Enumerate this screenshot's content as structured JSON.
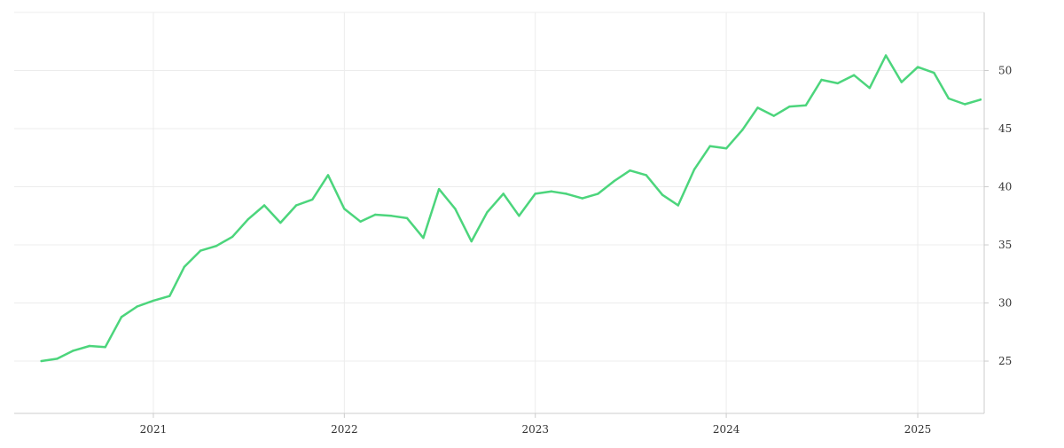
{
  "chart_data": {
    "type": "line",
    "title": "",
    "xlabel": "",
    "ylabel": "",
    "x_ticks": [
      "2021",
      "2022",
      "2023",
      "2024",
      "2025"
    ],
    "y_ticks": [
      25,
      30,
      35,
      40,
      45,
      50
    ],
    "y_axis_position": "right",
    "xlim": [
      "2020-04-10",
      "2025-05-08"
    ],
    "ylim": [
      20.5,
      55
    ],
    "grid": true,
    "series": [
      {
        "color": "#4cd57c",
        "points": [
          [
            "2020-06",
            25.0
          ],
          [
            "2020-07",
            25.2
          ],
          [
            "2020-08",
            25.9
          ],
          [
            "2020-09",
            26.3
          ],
          [
            "2020-10",
            26.2
          ],
          [
            "2020-11",
            28.8
          ],
          [
            "2020-12",
            29.7
          ],
          [
            "2021-01",
            30.2
          ],
          [
            "2021-02",
            30.6
          ],
          [
            "2021-03",
            33.1
          ],
          [
            "2021-04",
            34.5
          ],
          [
            "2021-05",
            34.9
          ],
          [
            "2021-06",
            35.7
          ],
          [
            "2021-07",
            37.2
          ],
          [
            "2021-08",
            38.4
          ],
          [
            "2021-09",
            36.9
          ],
          [
            "2021-10",
            38.4
          ],
          [
            "2021-11",
            38.9
          ],
          [
            "2021-12",
            41.0
          ],
          [
            "2022-01",
            38.1
          ],
          [
            "2022-02",
            37.0
          ],
          [
            "2022-03",
            37.6
          ],
          [
            "2022-04",
            37.5
          ],
          [
            "2022-05",
            37.3
          ],
          [
            "2022-06",
            35.6
          ],
          [
            "2022-07",
            39.8
          ],
          [
            "2022-08",
            38.1
          ],
          [
            "2022-09",
            35.3
          ],
          [
            "2022-10",
            37.8
          ],
          [
            "2022-11",
            39.4
          ],
          [
            "2022-12",
            37.5
          ],
          [
            "2023-01",
            39.4
          ],
          [
            "2023-02",
            39.6
          ],
          [
            "2023-03",
            39.4
          ],
          [
            "2023-04",
            39.0
          ],
          [
            "2023-05",
            39.4
          ],
          [
            "2023-06",
            40.5
          ],
          [
            "2023-07",
            41.4
          ],
          [
            "2023-08",
            41.0
          ],
          [
            "2023-09",
            39.3
          ],
          [
            "2023-10",
            38.4
          ],
          [
            "2023-11",
            41.5
          ],
          [
            "2023-12",
            43.5
          ],
          [
            "2024-01",
            43.3
          ],
          [
            "2024-02",
            44.9
          ],
          [
            "2024-03",
            46.8
          ],
          [
            "2024-04",
            46.1
          ],
          [
            "2024-05",
            46.9
          ],
          [
            "2024-06",
            47.0
          ],
          [
            "2024-07",
            49.2
          ],
          [
            "2024-08",
            48.9
          ],
          [
            "2024-09",
            49.6
          ],
          [
            "2024-10",
            48.5
          ],
          [
            "2024-11",
            51.3
          ],
          [
            "2024-12",
            49.0
          ],
          [
            "2025-01",
            50.3
          ],
          [
            "2025-02",
            49.8
          ],
          [
            "2025-03",
            47.6
          ],
          [
            "2025-04",
            47.1
          ],
          [
            "2025-05",
            47.5
          ]
        ]
      }
    ]
  }
}
